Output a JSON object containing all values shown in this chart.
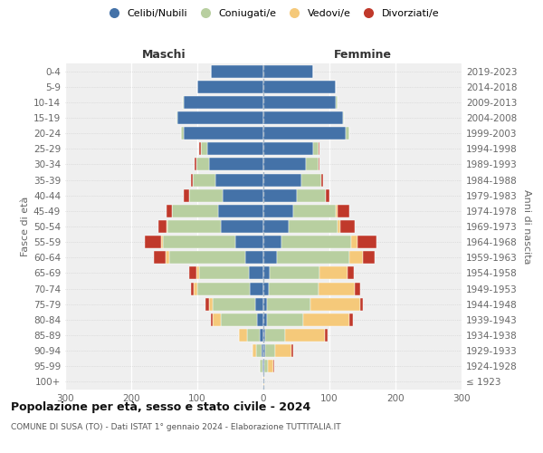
{
  "age_groups": [
    "100+",
    "95-99",
    "90-94",
    "85-89",
    "80-84",
    "75-79",
    "70-74",
    "65-69",
    "60-64",
    "55-59",
    "50-54",
    "45-49",
    "40-44",
    "35-39",
    "30-34",
    "25-29",
    "20-24",
    "15-19",
    "10-14",
    "5-9",
    "0-4"
  ],
  "birth_years": [
    "≤ 1923",
    "1924-1928",
    "1929-1933",
    "1934-1938",
    "1939-1943",
    "1944-1948",
    "1949-1953",
    "1954-1958",
    "1959-1963",
    "1964-1968",
    "1969-1973",
    "1974-1978",
    "1979-1983",
    "1984-1988",
    "1989-1993",
    "1994-1998",
    "1999-2003",
    "2004-2008",
    "2009-2013",
    "2014-2018",
    "2019-2023"
  ],
  "maschi": {
    "celibi": [
      0,
      2,
      3,
      5,
      10,
      12,
      20,
      22,
      28,
      42,
      65,
      68,
      62,
      72,
      82,
      85,
      120,
      130,
      120,
      100,
      80
    ],
    "coniugati": [
      0,
      3,
      8,
      20,
      55,
      65,
      80,
      75,
      115,
      110,
      80,
      70,
      50,
      35,
      20,
      10,
      5,
      2,
      2,
      0,
      0
    ],
    "vedovi": [
      0,
      0,
      5,
      12,
      12,
      5,
      5,
      4,
      5,
      3,
      2,
      0,
      0,
      0,
      0,
      0,
      0,
      0,
      0,
      0,
      0
    ],
    "divorziati": [
      0,
      0,
      0,
      0,
      3,
      5,
      5,
      12,
      18,
      25,
      12,
      8,
      8,
      2,
      2,
      2,
      0,
      0,
      0,
      0,
      0
    ]
  },
  "femmine": {
    "nubili": [
      0,
      2,
      3,
      3,
      5,
      6,
      8,
      10,
      20,
      28,
      38,
      45,
      50,
      58,
      65,
      75,
      125,
      120,
      110,
      110,
      75
    ],
    "coniugate": [
      0,
      5,
      15,
      30,
      55,
      65,
      75,
      75,
      110,
      105,
      75,
      65,
      45,
      30,
      18,
      8,
      5,
      2,
      2,
      0,
      0
    ],
    "vedove": [
      1,
      8,
      25,
      60,
      70,
      75,
      55,
      42,
      20,
      10,
      4,
      2,
      0,
      0,
      0,
      0,
      0,
      0,
      0,
      0,
      0
    ],
    "divorziate": [
      0,
      2,
      2,
      4,
      5,
      5,
      8,
      10,
      18,
      28,
      22,
      18,
      5,
      2,
      2,
      2,
      0,
      0,
      0,
      0,
      0
    ]
  },
  "colors": {
    "celibi": "#4472a8",
    "coniugati": "#b8cfa0",
    "vedovi": "#f5c97a",
    "divorziati": "#c0392b"
  },
  "title": "Popolazione per età, sesso e stato civile - 2024",
  "subtitle": "COMUNE DI SUSA (TO) - Dati ISTAT 1° gennaio 2024 - Elaborazione TUTTITALIA.IT",
  "label_maschi": "Maschi",
  "label_femmine": "Femmine",
  "ylabel_left": "Fasce di età",
  "ylabel_right": "Anni di nascita",
  "xlim": 300,
  "legend_labels": [
    "Celibi/Nubili",
    "Coniugati/e",
    "Vedovi/e",
    "Divorziati/e"
  ],
  "bg_color": "#ffffff",
  "plot_bg": "#efefef",
  "bar_height": 0.82,
  "grid_color": "#ffffff",
  "center_line_color": "#a8b8c8",
  "tick_color": "#666666"
}
